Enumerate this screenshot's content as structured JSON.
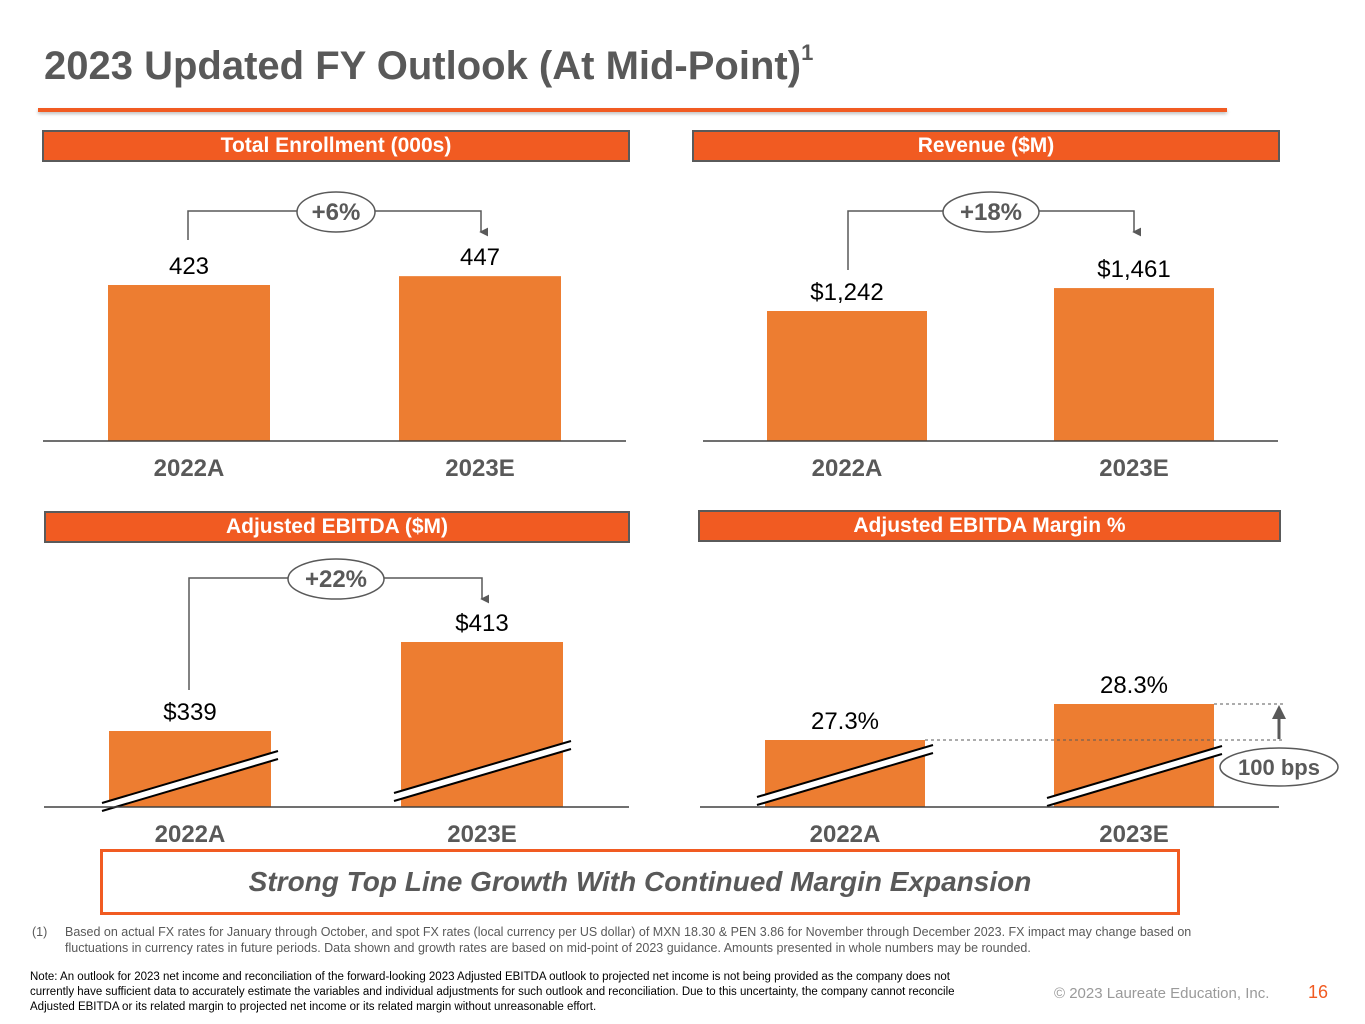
{
  "slide": {
    "title": "2023 Updated FY Outlook (At Mid-Point)",
    "title_superscript": "1",
    "callout": "Strong Top Line Growth With Continued Margin Expansion",
    "footnote_marker": "(1)",
    "footnote_text": "Based on actual FX rates for January through October, and spot FX rates (local currency per US dollar) of MXN 18.30 & PEN 3.86  for November through December 2023. FX impact may change based on fluctuations in currency rates in future periods. Data shown and growth rates are based on mid-point of 2023 guidance.  Amounts presented in whole numbers may be rounded.",
    "note": "Note: An outlook for 2023 net income and reconciliation of the forward-looking 2023 Adjusted EBITDA outlook to projected net income is not being provided as the company does not currently have sufficient data to accurately estimate the variables and individual adjustments for such outlook and reconciliation.  Due to this uncertainty, the company cannot reconcile Adjusted EBITDA or its related margin to projected net income or its related margin without unreasonable effort.",
    "copyright": "© 2023 Laureate Education, Inc.",
    "page_number": "16"
  },
  "colors": {
    "accent": "#f15b22",
    "bar": "#ed7d31",
    "text": "#595959",
    "axis": "#404040"
  },
  "chart_data": [
    {
      "type": "bar",
      "title": "Total Enrollment (000s)",
      "categories": [
        "2022A",
        "2023E"
      ],
      "values": [
        423,
        447
      ],
      "value_labels": [
        "423",
        "447"
      ],
      "growth_label": "+6%",
      "ylim": [
        0,
        450
      ]
    },
    {
      "type": "bar",
      "title": "Revenue ($M)",
      "categories": [
        "2022A",
        "2023E"
      ],
      "values": [
        1242,
        1461
      ],
      "value_labels": [
        "$1,242",
        "$1,461"
      ],
      "growth_label": "+18%",
      "ylim": [
        0,
        1500
      ]
    },
    {
      "type": "bar",
      "title": "Adjusted EBITDA ($M)",
      "categories": [
        "2022A",
        "2023E"
      ],
      "values": [
        339,
        413
      ],
      "value_labels": [
        "$339",
        "$413"
      ],
      "growth_label": "+22%",
      "axis_break": true
    },
    {
      "type": "bar",
      "title": "Adjusted EBITDA Margin %",
      "categories": [
        "2022A",
        "2023E"
      ],
      "values": [
        27.3,
        28.3
      ],
      "value_labels": [
        "27.3%",
        "28.3%"
      ],
      "delta_label": "100 bps",
      "axis_break": true
    }
  ]
}
